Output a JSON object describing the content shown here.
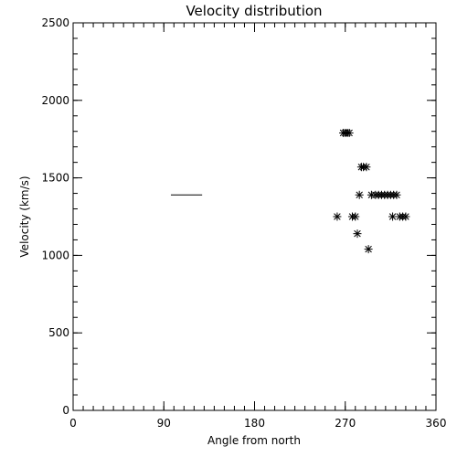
{
  "chart_data": {
    "type": "scatter",
    "title": "Velocity distribution",
    "xlabel": "Angle from north",
    "ylabel": "Velocity (km/s)",
    "xlim": [
      0,
      360
    ],
    "ylim": [
      0,
      2500
    ],
    "xticks": [
      0,
      90,
      180,
      270,
      360
    ],
    "yticks": [
      0,
      500,
      1000,
      1500,
      2000,
      2500
    ],
    "x_minor_step": 10,
    "y_minor_step": 100,
    "grid": false,
    "marker": "asterisk",
    "color": "#000000",
    "points": [
      {
        "x": 262,
        "y": 1250
      },
      {
        "x": 268,
        "y": 1790
      },
      {
        "x": 270,
        "y": 1790
      },
      {
        "x": 272,
        "y": 1790
      },
      {
        "x": 274,
        "y": 1790
      },
      {
        "x": 277,
        "y": 1250
      },
      {
        "x": 280,
        "y": 1250
      },
      {
        "x": 282,
        "y": 1140
      },
      {
        "x": 284,
        "y": 1390
      },
      {
        "x": 286,
        "y": 1570
      },
      {
        "x": 288,
        "y": 1570
      },
      {
        "x": 291,
        "y": 1570
      },
      {
        "x": 293,
        "y": 1040
      },
      {
        "x": 296,
        "y": 1390
      },
      {
        "x": 300,
        "y": 1390
      },
      {
        "x": 303,
        "y": 1390
      },
      {
        "x": 306,
        "y": 1390
      },
      {
        "x": 309,
        "y": 1390
      },
      {
        "x": 312,
        "y": 1390
      },
      {
        "x": 315,
        "y": 1390
      },
      {
        "x": 317,
        "y": 1250
      },
      {
        "x": 318,
        "y": 1390
      },
      {
        "x": 321,
        "y": 1390
      },
      {
        "x": 324,
        "y": 1250
      },
      {
        "x": 327,
        "y": 1250
      },
      {
        "x": 330,
        "y": 1250
      }
    ],
    "hline": {
      "x_start": 97,
      "x_end": 128,
      "y": 1390
    }
  }
}
